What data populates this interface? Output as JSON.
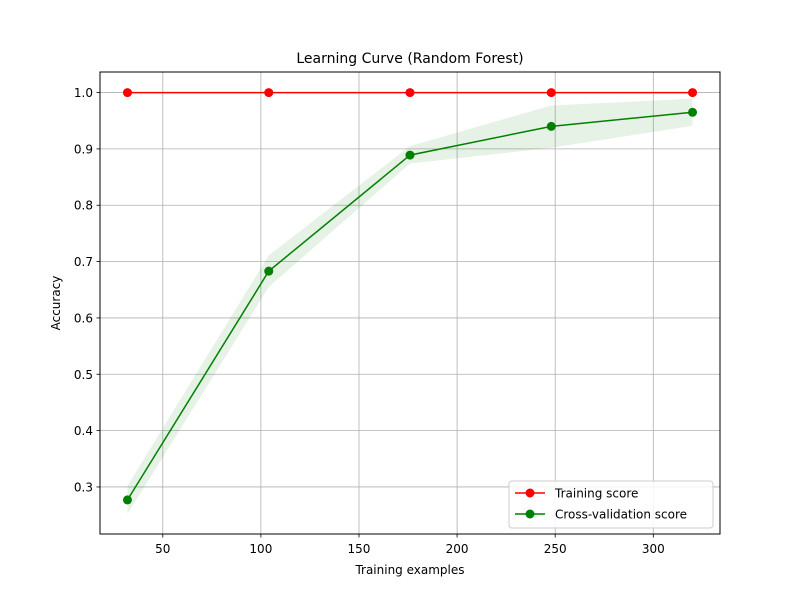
{
  "chart_data": {
    "type": "line",
    "title": "Learning Curve (Random Forest)",
    "xlabel": "Training examples",
    "ylabel": "Accuracy",
    "xlim": [
      18,
      334
    ],
    "ylim": [
      0.2165,
      1.0365
    ],
    "xticks": [
      50,
      100,
      150,
      200,
      250,
      300
    ],
    "yticks": [
      0.3,
      0.4,
      0.5,
      0.6,
      0.7,
      0.8,
      0.9,
      1.0
    ],
    "grid": true,
    "legend_position": "lower-right",
    "x": [
      32,
      104,
      176,
      248,
      320
    ],
    "series": [
      {
        "name": "Training score",
        "color": "#ff0000",
        "values": [
          1.0,
          1.0,
          1.0,
          1.0,
          1.0
        ],
        "band_lower": [
          1.0,
          1.0,
          1.0,
          1.0,
          1.0
        ],
        "band_upper": [
          1.0,
          1.0,
          1.0,
          1.0,
          1.0
        ]
      },
      {
        "name": "Cross-validation score",
        "color": "#008000",
        "values": [
          0.277,
          0.683,
          0.889,
          0.94,
          0.965
        ],
        "band_lower": [
          0.252,
          0.655,
          0.874,
          0.902,
          0.941
        ],
        "band_upper": [
          0.302,
          0.711,
          0.905,
          0.977,
          0.989
        ]
      }
    ]
  }
}
